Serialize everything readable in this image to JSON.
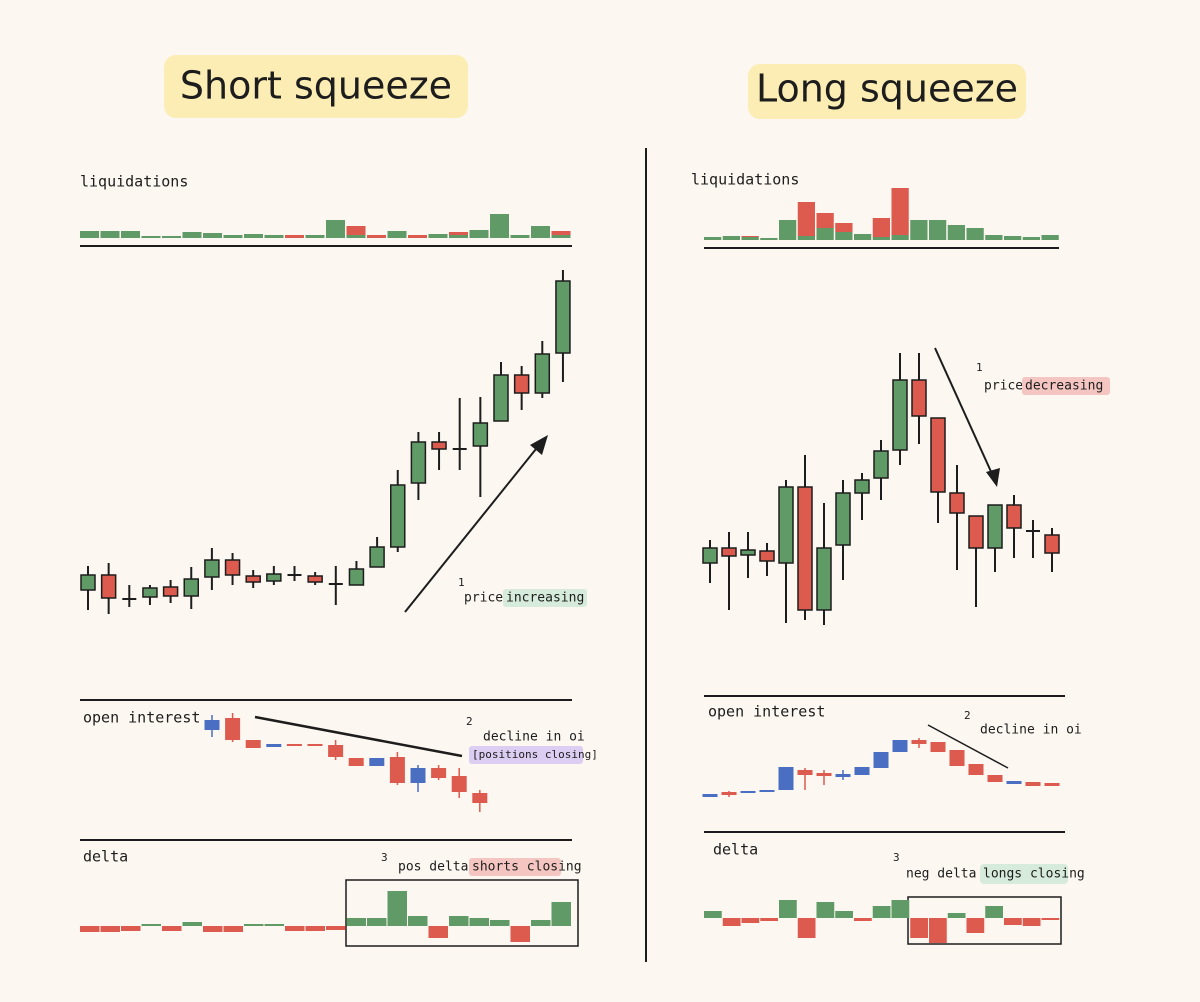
{
  "colors": {
    "up": "#5f9a67",
    "down": "#dc5a4e",
    "oi_up": "#4a6fc2",
    "neutral": "#1d1d1d"
  },
  "panels": [
    {
      "title": "Short squeeze",
      "liquidations": {
        "label": "liquidations",
        "ylim": [
          0,
          60
        ],
        "green": [
          7,
          7,
          7,
          2,
          2,
          6,
          5,
          3,
          4,
          3,
          0,
          3,
          18,
          3,
          0,
          7,
          0,
          4,
          3,
          8,
          24,
          3,
          12,
          3
        ],
        "red": [
          0,
          0,
          0,
          0,
          0,
          0,
          0,
          0,
          0,
          0,
          3,
          0,
          0,
          9,
          3,
          0,
          3,
          0,
          3,
          0,
          0,
          0,
          0,
          4
        ]
      },
      "price": {
        "ylim": [
          0,
          400
        ],
        "candles": [
          [
            60,
            84,
            40,
            75
          ],
          [
            75,
            87,
            36,
            52
          ],
          [
            51,
            65,
            43,
            51
          ],
          [
            53,
            65,
            45,
            62
          ],
          [
            63,
            70,
            47,
            54
          ],
          [
            54,
            83,
            41,
            71
          ],
          [
            73,
            102,
            60,
            90
          ],
          [
            90,
            97,
            65,
            75
          ],
          [
            74,
            80,
            62,
            68
          ],
          [
            69,
            84,
            65,
            76
          ],
          [
            75,
            84,
            69,
            75
          ],
          [
            74,
            78,
            65,
            68
          ],
          [
            66,
            84,
            45,
            66
          ],
          [
            65,
            89,
            65,
            81
          ],
          [
            83,
            113,
            83,
            103
          ],
          [
            103,
            180,
            98,
            165
          ],
          [
            167,
            218,
            150,
            208
          ],
          [
            208,
            218,
            180,
            201
          ],
          [
            201,
            252,
            180,
            201
          ],
          [
            204,
            253,
            153,
            227
          ],
          [
            229,
            288,
            229,
            275
          ],
          [
            275,
            284,
            240,
            257
          ],
          [
            257,
            309,
            252,
            296
          ],
          [
            297,
            380,
            268,
            369
          ]
        ]
      },
      "note_price": {
        "number": "1",
        "text": "price",
        "highlight": "increasing"
      },
      "open_interest": {
        "label": "open interest",
        "ylim": [
          0,
          120
        ],
        "candles": [
          [
            90,
            105,
            83,
            100
          ],
          [
            102,
            107,
            78,
            80
          ],
          [
            80,
            80,
            72,
            72
          ],
          [
            73,
            76,
            73,
            76
          ],
          [
            76,
            76,
            74,
            74
          ],
          [
            76,
            76,
            74,
            74
          ],
          [
            75,
            80,
            60,
            63
          ],
          [
            62,
            62,
            54,
            54
          ],
          [
            54,
            62,
            54,
            62
          ],
          [
            63,
            68,
            35,
            37
          ],
          [
            37,
            55,
            28,
            52
          ],
          [
            52,
            55,
            40,
            42
          ],
          [
            44,
            52,
            22,
            28
          ],
          [
            27,
            30,
            8,
            17
          ]
        ]
      },
      "note_oi": {
        "number": "2",
        "text": "decline in oi",
        "highlight": "[positions closing]"
      },
      "delta": {
        "label": "delta",
        "ylim": [
          -40,
          40
        ],
        "values": [
          -6,
          -6,
          -5,
          2,
          -5,
          4,
          -6,
          -6,
          2,
          2,
          -5,
          -5,
          -4,
          8,
          8,
          35,
          10,
          -12,
          10,
          8,
          6,
          -16,
          6,
          24
        ]
      },
      "note_delta": {
        "number": "3",
        "text": "pos delta =",
        "highlight": "shorts closing"
      }
    },
    {
      "title": "Long squeeze",
      "liquidations": {
        "label": "liquidations",
        "ylim": [
          0,
          60
        ],
        "green": [
          3,
          4,
          3,
          2,
          20,
          4,
          12,
          8,
          6,
          3,
          5,
          20,
          20,
          15,
          12,
          5,
          4,
          3,
          5
        ],
        "red": [
          0,
          0,
          1,
          0,
          0,
          34,
          15,
          9,
          0,
          19,
          47,
          0,
          0,
          0,
          0,
          0,
          0,
          0,
          0
        ]
      },
      "price": {
        "ylim": [
          0,
          400
        ],
        "candles": [
          [
            87,
            110,
            67,
            102
          ],
          [
            102,
            118,
            40,
            94
          ],
          [
            95,
            118,
            72,
            100
          ],
          [
            99,
            107,
            74,
            89
          ],
          [
            87,
            170,
            27,
            163
          ],
          [
            163,
            195,
            30,
            40
          ],
          [
            40,
            147,
            25,
            102
          ],
          [
            105,
            170,
            70,
            157
          ],
          [
            157,
            177,
            130,
            170
          ],
          [
            172,
            210,
            150,
            199
          ],
          [
            200,
            297,
            185,
            270
          ],
          [
            270,
            297,
            206,
            234
          ],
          [
            232,
            232,
            127,
            158
          ],
          [
            157,
            185,
            80,
            137
          ],
          [
            134,
            134,
            43,
            102
          ],
          [
            102,
            145,
            78,
            145
          ],
          [
            145,
            155,
            92,
            122
          ],
          [
            119,
            130,
            92,
            119
          ],
          [
            115,
            122,
            78,
            97
          ]
        ]
      },
      "note_price": {
        "number": "1",
        "text": "price",
        "highlight": "decreasing"
      },
      "open_interest": {
        "label": "open interest",
        "ylim": [
          0,
          120
        ],
        "candles": [
          [
            23,
            26,
            23,
            26
          ],
          [
            28,
            29,
            23,
            25
          ],
          [
            27,
            29,
            27,
            29
          ],
          [
            28,
            30,
            28,
            30
          ],
          [
            30,
            53,
            30,
            53
          ],
          [
            50,
            52,
            30,
            45
          ],
          [
            47,
            50,
            35,
            44
          ],
          [
            43,
            50,
            40,
            46
          ],
          [
            45,
            53,
            45,
            53
          ],
          [
            52,
            68,
            52,
            68
          ],
          [
            68,
            80,
            68,
            80
          ],
          [
            80,
            82,
            72,
            76
          ],
          [
            78,
            78,
            68,
            68
          ],
          [
            70,
            70,
            54,
            54
          ],
          [
            56,
            56,
            45,
            45
          ],
          [
            45,
            45,
            38,
            38
          ],
          [
            36,
            39,
            36,
            39
          ],
          [
            38,
            38,
            34,
            34
          ],
          [
            37,
            37,
            34,
            34
          ]
        ]
      },
      "note_oi": {
        "number": "2",
        "text": "decline in oi"
      },
      "delta": {
        "label": "delta",
        "ylim": [
          -40,
          40
        ],
        "values": [
          7,
          -8,
          -5,
          -3,
          18,
          -20,
          16,
          7,
          -3,
          12,
          18,
          -20,
          -25,
          5,
          -15,
          12,
          -7,
          -8,
          -2
        ]
      },
      "note_delta": {
        "number": "3",
        "text": "neg delta =",
        "highlight": "longs closing"
      }
    }
  ]
}
